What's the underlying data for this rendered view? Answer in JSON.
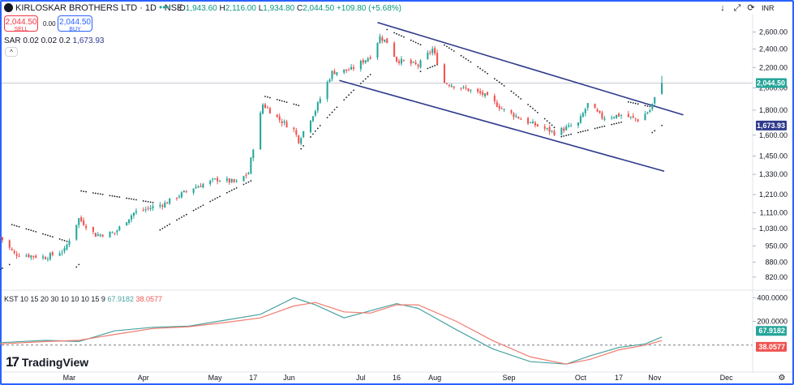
{
  "header": {
    "symbol_title": "KIRLOSKAR BROTHERS LTD · 1D · NSE",
    "ohlc": [
      {
        "k": "O",
        "v": "1,943.60"
      },
      {
        "k": "H",
        "v": "2,116.00"
      },
      {
        "k": "L",
        "v": "1,934.80"
      },
      {
        "k": "C",
        "v": "2,044.50"
      }
    ],
    "change": "+109.80 (+5.68%)",
    "sell_price": "2,044.50",
    "sell_label": "SELL",
    "spread": "0.00",
    "buy_price": "2,044.50",
    "buy_label": "BUY",
    "sar_label": "SAR 0.02 0.02 0.2",
    "sar_value": "1,673.93",
    "currency": "INR",
    "brand": "TradingView"
  },
  "kst_header": {
    "label": "KST 10 15 20 30 10 10 10 15 9",
    "kst_value": "67.9182",
    "signal_value": "38.0577"
  },
  "colors": {
    "up": "#26a69a",
    "down": "#ef5350",
    "trendline": "#2e3a8c",
    "sar_tag": "#2e3a8c",
    "last_tag": "#26a69a",
    "signal_tag": "#ef5350",
    "kst_line": "#4aa3a0",
    "signal_line": "#ef7b6e"
  },
  "chart_data": [
    {
      "type": "candlestick",
      "title": "KIRLOSKAR BROTHERS LTD · 1D · NSE",
      "y_scale": "log",
      "y_ticks": [
        2600,
        2400,
        2200,
        2000,
        1800,
        1600,
        1450,
        1330,
        1210,
        1110,
        1030,
        950,
        880,
        820
      ],
      "y_tick_labels": [
        "2,600.00",
        "2,400.00",
        "2,200.00",
        "2,000.00",
        "1,800.00",
        "1,600.00",
        "1,450.00",
        "1,330.00",
        "1,210.00",
        "1,110.00",
        "1,030.00",
        "950.00",
        "880.00",
        "820.00"
      ],
      "y_range": [
        780,
        2780
      ],
      "x_range": [
        "2024-02-01",
        "2024-12-12"
      ],
      "x_ticks": [
        {
          "date": "2024-03-01",
          "label": "Mar"
        },
        {
          "date": "2024-04-01",
          "label": "Apr"
        },
        {
          "date": "2024-05-01",
          "label": "May"
        },
        {
          "date": "2024-05-17",
          "label": "17"
        },
        {
          "date": "2024-06-01",
          "label": "Jun"
        },
        {
          "date": "2024-07-01",
          "label": "Jul"
        },
        {
          "date": "2024-07-16",
          "label": "16"
        },
        {
          "date": "2024-08-01",
          "label": "Aug"
        },
        {
          "date": "2024-09-01",
          "label": "Sep"
        },
        {
          "date": "2024-10-01",
          "label": "Oct"
        },
        {
          "date": "2024-10-17",
          "label": "17"
        },
        {
          "date": "2024-11-01",
          "label": "Nov"
        },
        {
          "date": "2024-12-01",
          "label": "Dec"
        }
      ],
      "last_price": 2044.5,
      "last_price_label": "2,044.50",
      "sar_value": 1673.93,
      "sar_value_label": "1,673.93",
      "close_anchors": [
        [
          "2024-02-01",
          990
        ],
        [
          "2024-02-07",
          915
        ],
        [
          "2024-02-20",
          900
        ],
        [
          "2024-02-28",
          930
        ],
        [
          "2024-03-05",
          1080
        ],
        [
          "2024-03-12",
          1000
        ],
        [
          "2024-03-20",
          1010
        ],
        [
          "2024-03-28",
          1110
        ],
        [
          "2024-04-10",
          1160
        ],
        [
          "2024-04-22",
          1250
        ],
        [
          "2024-05-02",
          1300
        ],
        [
          "2024-05-10",
          1280
        ],
        [
          "2024-05-15",
          1340
        ],
        [
          "2024-05-21",
          1850
        ],
        [
          "2024-05-28",
          1720
        ],
        [
          "2024-06-03",
          1640
        ],
        [
          "2024-06-05",
          1560
        ],
        [
          "2024-06-12",
          1800
        ],
        [
          "2024-06-19",
          2150
        ],
        [
          "2024-06-27",
          2180
        ],
        [
          "2024-07-05",
          2320
        ],
        [
          "2024-07-09",
          2540
        ],
        [
          "2024-07-12",
          2480
        ],
        [
          "2024-07-16",
          2280
        ],
        [
          "2024-07-25",
          2220
        ],
        [
          "2024-07-31",
          2400
        ],
        [
          "2024-08-05",
          2050
        ],
        [
          "2024-08-12",
          2000
        ],
        [
          "2024-08-21",
          1940
        ],
        [
          "2024-08-30",
          1800
        ],
        [
          "2024-09-09",
          1700
        ],
        [
          "2024-09-20",
          1620
        ],
        [
          "2024-09-30",
          1690
        ],
        [
          "2024-10-04",
          1850
        ],
        [
          "2024-10-10",
          1740
        ],
        [
          "2024-10-18",
          1760
        ],
        [
          "2024-10-25",
          1720
        ],
        [
          "2024-10-30",
          1800
        ],
        [
          "2024-11-04",
          2044.5
        ]
      ],
      "sar_segments": [
        {
          "from": "2024-02-01",
          "to": "2024-02-05",
          "start": 850,
          "end": 870
        },
        {
          "from": "2024-02-06",
          "to": "2024-03-03",
          "start": 1050,
          "end": 960
        },
        {
          "from": "2024-03-04",
          "to": "2024-03-05",
          "start": 860,
          "end": 870
        },
        {
          "from": "2024-03-06",
          "to": "2024-04-05",
          "start": 1230,
          "end": 1165
        },
        {
          "from": "2024-04-06",
          "to": "2024-05-16",
          "start": 1010,
          "end": 1290
        },
        {
          "from": "2024-05-22",
          "to": "2024-06-05",
          "start": 1920,
          "end": 1840
        },
        {
          "from": "2024-06-06",
          "to": "2024-07-06",
          "start": 1500,
          "end": 2150
        },
        {
          "from": "2024-07-12",
          "to": "2024-07-26",
          "start": 2630,
          "end": 2450
        },
        {
          "from": "2024-07-26",
          "to": "2024-08-03",
          "start": 2160,
          "end": 2240
        },
        {
          "from": "2024-08-03",
          "to": "2024-09-20",
          "start": 2480,
          "end": 1660
        },
        {
          "from": "2024-09-21",
          "to": "2024-10-18",
          "start": 1580,
          "end": 1700
        },
        {
          "from": "2024-10-19",
          "to": "2024-10-30",
          "start": 1880,
          "end": 1830
        },
        {
          "from": "2024-10-31",
          "to": "2024-11-04",
          "start": 1620,
          "end": 1674
        }
      ],
      "trendlines": [
        {
          "from": {
            "date": "2024-07-08",
            "price": 2720
          },
          "to": {
            "date": "2024-11-13",
            "price": 1760
          }
        },
        {
          "from": {
            "date": "2024-06-22",
            "price": 2070
          },
          "to": {
            "date": "2024-11-05",
            "price": 1350
          }
        }
      ]
    },
    {
      "type": "line",
      "title": "KST 10 15 20 30 10 10 10 15 9",
      "y_ticks": [
        400,
        200
      ],
      "y_tick_labels": [
        "400.0000",
        "200.0000"
      ],
      "zero_line": 0,
      "y_range": [
        -200,
        450
      ],
      "series": [
        {
          "name": "KST",
          "last": 67.9182,
          "points": [
            [
              "2024-02-01",
              20
            ],
            [
              "2024-02-20",
              40
            ],
            [
              "2024-03-05",
              30
            ],
            [
              "2024-03-20",
              120
            ],
            [
              "2024-04-05",
              150
            ],
            [
              "2024-04-20",
              160
            ],
            [
              "2024-05-05",
              210
            ],
            [
              "2024-05-20",
              260
            ],
            [
              "2024-06-03",
              400
            ],
            [
              "2024-06-12",
              340
            ],
            [
              "2024-06-24",
              230
            ],
            [
              "2024-07-05",
              290
            ],
            [
              "2024-07-16",
              350
            ],
            [
              "2024-07-25",
              310
            ],
            [
              "2024-08-10",
              130
            ],
            [
              "2024-08-25",
              -30
            ],
            [
              "2024-09-10",
              -140
            ],
            [
              "2024-09-25",
              -160
            ],
            [
              "2024-10-05",
              -90
            ],
            [
              "2024-10-17",
              -20
            ],
            [
              "2024-10-28",
              10
            ],
            [
              "2024-11-04",
              67.9182
            ]
          ]
        },
        {
          "name": "Signal",
          "last": 38.0577,
          "points": [
            [
              "2024-02-01",
              10
            ],
            [
              "2024-02-20",
              30
            ],
            [
              "2024-03-05",
              40
            ],
            [
              "2024-03-20",
              90
            ],
            [
              "2024-04-05",
              140
            ],
            [
              "2024-04-20",
              155
            ],
            [
              "2024-05-05",
              190
            ],
            [
              "2024-05-20",
              230
            ],
            [
              "2024-06-03",
              330
            ],
            [
              "2024-06-12",
              360
            ],
            [
              "2024-06-24",
              280
            ],
            [
              "2024-07-05",
              270
            ],
            [
              "2024-07-16",
              340
            ],
            [
              "2024-07-25",
              340
            ],
            [
              "2024-08-10",
              200
            ],
            [
              "2024-08-25",
              40
            ],
            [
              "2024-09-10",
              -100
            ],
            [
              "2024-09-25",
              -160
            ],
            [
              "2024-10-05",
              -120
            ],
            [
              "2024-10-17",
              -40
            ],
            [
              "2024-10-28",
              0
            ],
            [
              "2024-11-04",
              38.0577
            ]
          ]
        }
      ]
    }
  ]
}
